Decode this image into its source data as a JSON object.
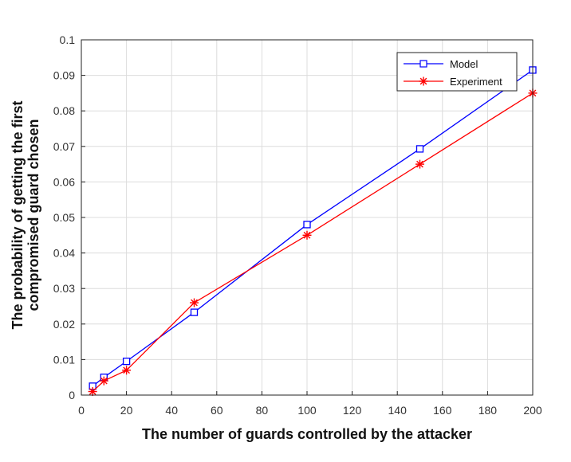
{
  "chart_data": {
    "type": "line",
    "xlabel": "The number of guards controlled by the attacker",
    "ylabel_lines": [
      "The probability of getting the first",
      "compromised guard chosen"
    ],
    "xlim": [
      0,
      200
    ],
    "ylim": [
      0,
      0.1
    ],
    "x_ticks": [
      0,
      20,
      40,
      60,
      80,
      100,
      120,
      140,
      160,
      180,
      200
    ],
    "y_ticks": [
      0,
      0.01,
      0.02,
      0.03,
      0.04,
      0.05,
      0.06,
      0.07,
      0.08,
      0.09,
      0.1
    ],
    "y_tick_labels": [
      "0",
      "0.01",
      "0.02",
      "0.03",
      "0.04",
      "0.05",
      "0.06",
      "0.07",
      "0.08",
      "0.09",
      "0.1"
    ],
    "grid": true,
    "legend_position": "top-right",
    "series": [
      {
        "name": "Model",
        "color": "#0000ff",
        "marker": "square",
        "x": [
          5,
          10,
          20,
          50,
          100,
          150,
          200
        ],
        "y": [
          0.0025,
          0.005,
          0.0095,
          0.0233,
          0.048,
          0.0693,
          0.0915
        ]
      },
      {
        "name": "Experiment",
        "color": "#ff0000",
        "marker": "asterisk",
        "x": [
          5,
          10,
          20,
          50,
          100,
          150,
          200
        ],
        "y": [
          0.001,
          0.004,
          0.007,
          0.026,
          0.045,
          0.065,
          0.085
        ]
      }
    ]
  }
}
